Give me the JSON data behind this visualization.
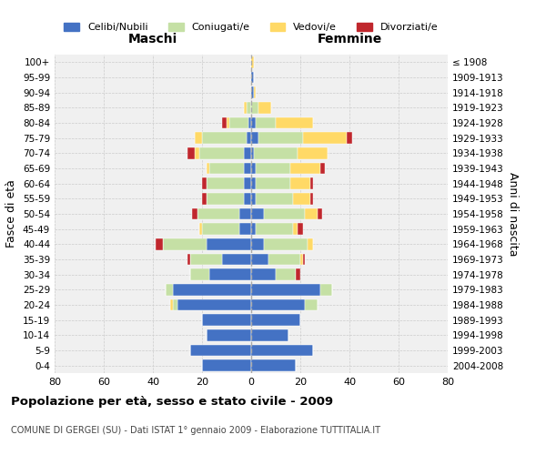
{
  "age_groups": [
    "0-4",
    "5-9",
    "10-14",
    "15-19",
    "20-24",
    "25-29",
    "30-34",
    "35-39",
    "40-44",
    "45-49",
    "50-54",
    "55-59",
    "60-64",
    "65-69",
    "70-74",
    "75-79",
    "80-84",
    "85-89",
    "90-94",
    "95-99",
    "100+"
  ],
  "birth_years": [
    "2004-2008",
    "1999-2003",
    "1994-1998",
    "1989-1993",
    "1984-1988",
    "1979-1983",
    "1974-1978",
    "1969-1973",
    "1964-1968",
    "1959-1963",
    "1954-1958",
    "1949-1953",
    "1944-1948",
    "1939-1943",
    "1934-1938",
    "1929-1933",
    "1924-1928",
    "1919-1923",
    "1914-1918",
    "1909-1913",
    "≤ 1908"
  ],
  "maschi": {
    "celibi": [
      20,
      25,
      18,
      20,
      30,
      32,
      17,
      12,
      18,
      5,
      5,
      3,
      3,
      3,
      3,
      2,
      1,
      0,
      0,
      0,
      0
    ],
    "coniugati": [
      0,
      0,
      0,
      0,
      2,
      3,
      8,
      13,
      18,
      15,
      17,
      15,
      15,
      14,
      18,
      18,
      8,
      2,
      0,
      0,
      0
    ],
    "vedovi": [
      0,
      0,
      0,
      0,
      1,
      0,
      0,
      0,
      0,
      1,
      0,
      0,
      0,
      1,
      2,
      3,
      1,
      1,
      0,
      0,
      0
    ],
    "divorziati": [
      0,
      0,
      0,
      0,
      0,
      0,
      0,
      1,
      3,
      0,
      2,
      2,
      2,
      0,
      3,
      0,
      2,
      0,
      0,
      0,
      0
    ]
  },
  "femmine": {
    "nubili": [
      18,
      25,
      15,
      20,
      22,
      28,
      10,
      7,
      5,
      2,
      5,
      2,
      2,
      2,
      1,
      3,
      2,
      0,
      1,
      1,
      0
    ],
    "coniugate": [
      0,
      0,
      0,
      0,
      5,
      5,
      8,
      13,
      18,
      15,
      17,
      15,
      14,
      14,
      18,
      18,
      8,
      3,
      0,
      0,
      0
    ],
    "vedove": [
      0,
      0,
      0,
      0,
      0,
      0,
      0,
      1,
      2,
      2,
      5,
      7,
      8,
      12,
      12,
      18,
      15,
      5,
      1,
      0,
      1
    ],
    "divorziate": [
      0,
      0,
      0,
      0,
      0,
      0,
      2,
      1,
      0,
      2,
      2,
      1,
      1,
      2,
      0,
      2,
      0,
      0,
      0,
      0,
      0
    ]
  },
  "colors": {
    "celibi_nubili": "#4472C4",
    "coniugati": "#C5E0A5",
    "vedovi": "#FFD966",
    "divorziati": "#C0272D"
  },
  "xlim": 80,
  "title": "Popolazione per età, sesso e stato civile - 2009",
  "subtitle": "COMUNE DI GERGEI (SU) - Dati ISTAT 1° gennaio 2009 - Elaborazione TUTTITALIA.IT",
  "ylabel_left": "Fasce di età",
  "ylabel_right": "Anni di nascita",
  "xlabel_maschi": "Maschi",
  "xlabel_femmine": "Femmine",
  "legend_labels": [
    "Celibi/Nubili",
    "Coniugati/e",
    "Vedovi/e",
    "Divorziati/e"
  ],
  "background_color": "#f0f0f0",
  "grid_color": "#cccccc"
}
